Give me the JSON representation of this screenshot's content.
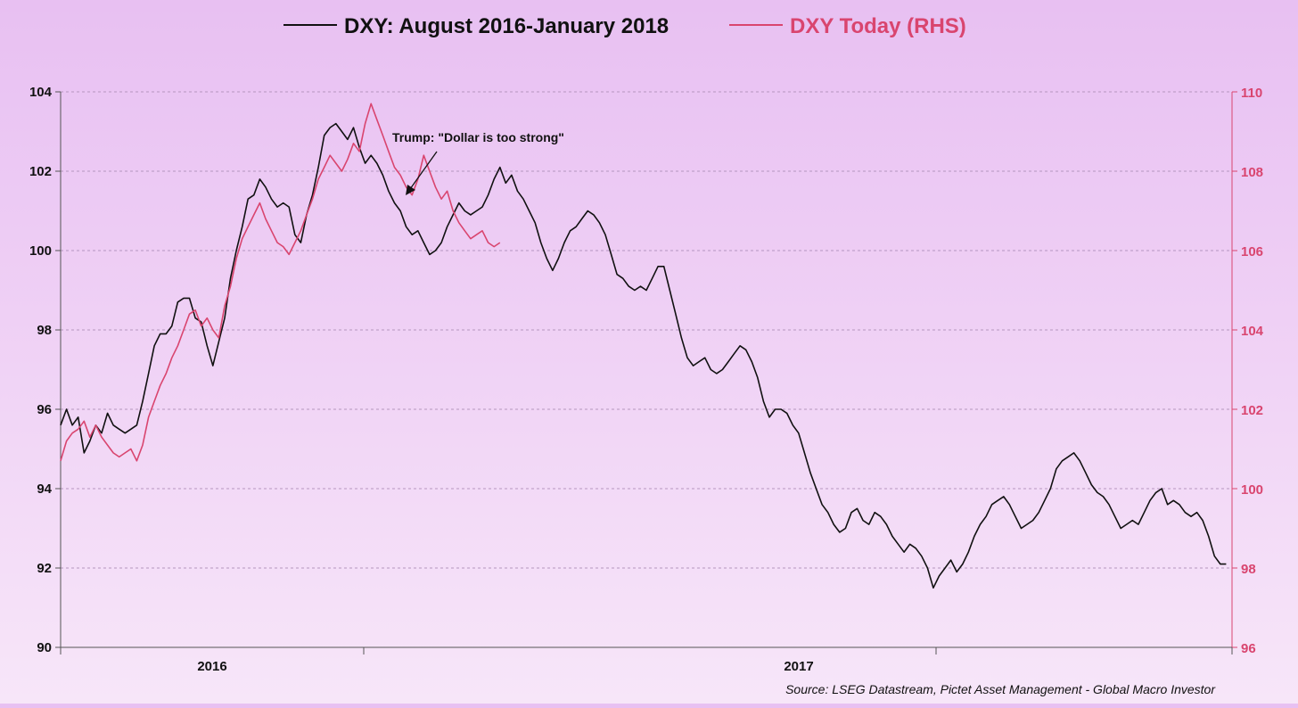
{
  "chart_data": {
    "type": "line",
    "x_axis": {
      "tick_labels": [
        "2016",
        "2017"
      ]
    },
    "y_left": {
      "ylim": [
        90,
        104
      ],
      "ticks": [
        90,
        92,
        94,
        96,
        98,
        100,
        102,
        104
      ]
    },
    "y_right": {
      "ylim": [
        96,
        110
      ],
      "ticks": [
        96,
        98,
        100,
        102,
        104,
        106,
        108,
        110
      ]
    },
    "grid": true,
    "legend_position": "top",
    "annotation": "Trump: \"Dollar is too strong\"",
    "source": "Source: LSEG Datastream, Pictet Asset Management - Global Macro Investor",
    "series": [
      {
        "name": "DXY: August 2016-January 2018",
        "axis": "left",
        "color": "#111111",
        "points": [
          [
            0,
            95.6
          ],
          [
            4,
            96.0
          ],
          [
            8,
            95.6
          ],
          [
            12,
            95.8
          ],
          [
            16,
            94.9
          ],
          [
            20,
            95.2
          ],
          [
            24,
            95.6
          ],
          [
            28,
            95.4
          ],
          [
            32,
            95.9
          ],
          [
            36,
            95.6
          ],
          [
            40,
            95.5
          ],
          [
            44,
            95.4
          ],
          [
            48,
            95.5
          ],
          [
            52,
            95.6
          ],
          [
            56,
            96.2
          ],
          [
            60,
            96.9
          ],
          [
            64,
            97.6
          ],
          [
            68,
            97.9
          ],
          [
            72,
            97.9
          ],
          [
            76,
            98.1
          ],
          [
            80,
            98.7
          ],
          [
            84,
            98.8
          ],
          [
            88,
            98.8
          ],
          [
            92,
            98.3
          ],
          [
            96,
            98.2
          ],
          [
            100,
            97.6
          ],
          [
            104,
            97.1
          ],
          [
            108,
            97.7
          ],
          [
            112,
            98.3
          ],
          [
            116,
            99.3
          ],
          [
            120,
            100.0
          ],
          [
            124,
            100.6
          ],
          [
            128,
            101.3
          ],
          [
            132,
            101.4
          ],
          [
            136,
            101.8
          ],
          [
            140,
            101.6
          ],
          [
            144,
            101.3
          ],
          [
            148,
            101.1
          ],
          [
            152,
            101.2
          ],
          [
            156,
            101.1
          ],
          [
            160,
            100.4
          ],
          [
            164,
            100.2
          ],
          [
            168,
            100.9
          ],
          [
            172,
            101.4
          ],
          [
            176,
            102.1
          ],
          [
            180,
            102.9
          ],
          [
            184,
            103.1
          ],
          [
            188,
            103.2
          ],
          [
            192,
            103.0
          ],
          [
            196,
            102.8
          ],
          [
            200,
            103.1
          ],
          [
            204,
            102.6
          ],
          [
            208,
            102.2
          ],
          [
            212,
            102.4
          ],
          [
            216,
            102.2
          ],
          [
            220,
            101.9
          ],
          [
            224,
            101.5
          ],
          [
            228,
            101.2
          ],
          [
            232,
            101.0
          ],
          [
            236,
            100.6
          ],
          [
            240,
            100.4
          ],
          [
            244,
            100.5
          ],
          [
            248,
            100.2
          ],
          [
            252,
            99.9
          ],
          [
            256,
            100.0
          ],
          [
            260,
            100.2
          ],
          [
            264,
            100.6
          ],
          [
            268,
            100.9
          ],
          [
            272,
            101.2
          ],
          [
            276,
            101.0
          ],
          [
            280,
            100.9
          ],
          [
            284,
            101.0
          ],
          [
            288,
            101.1
          ],
          [
            292,
            101.4
          ],
          [
            296,
            101.8
          ],
          [
            300,
            102.1
          ],
          [
            304,
            101.7
          ],
          [
            308,
            101.9
          ],
          [
            312,
            101.5
          ],
          [
            316,
            101.3
          ],
          [
            320,
            101.0
          ],
          [
            324,
            100.7
          ],
          [
            328,
            100.2
          ],
          [
            332,
            99.8
          ],
          [
            336,
            99.5
          ],
          [
            340,
            99.8
          ],
          [
            344,
            100.2
          ],
          [
            348,
            100.5
          ],
          [
            352,
            100.6
          ],
          [
            356,
            100.8
          ],
          [
            360,
            101.0
          ],
          [
            364,
            100.9
          ],
          [
            368,
            100.7
          ],
          [
            372,
            100.4
          ],
          [
            376,
            99.9
          ],
          [
            380,
            99.4
          ],
          [
            384,
            99.3
          ],
          [
            388,
            99.1
          ],
          [
            392,
            99.0
          ],
          [
            396,
            99.1
          ],
          [
            400,
            99.0
          ],
          [
            404,
            99.3
          ],
          [
            408,
            99.6
          ],
          [
            412,
            99.6
          ],
          [
            416,
            99.0
          ],
          [
            420,
            98.4
          ],
          [
            424,
            97.8
          ],
          [
            428,
            97.3
          ],
          [
            432,
            97.1
          ],
          [
            436,
            97.2
          ],
          [
            440,
            97.3
          ],
          [
            444,
            97.0
          ],
          [
            448,
            96.9
          ],
          [
            452,
            97.0
          ],
          [
            456,
            97.2
          ],
          [
            460,
            97.4
          ],
          [
            464,
            97.6
          ],
          [
            468,
            97.5
          ],
          [
            472,
            97.2
          ],
          [
            476,
            96.8
          ],
          [
            480,
            96.2
          ],
          [
            484,
            95.8
          ],
          [
            488,
            96.0
          ],
          [
            492,
            96.0
          ],
          [
            496,
            95.9
          ],
          [
            500,
            95.6
          ],
          [
            504,
            95.4
          ],
          [
            508,
            94.9
          ],
          [
            512,
            94.4
          ],
          [
            516,
            94.0
          ],
          [
            520,
            93.6
          ],
          [
            524,
            93.4
          ],
          [
            528,
            93.1
          ],
          [
            532,
            92.9
          ],
          [
            536,
            93.0
          ],
          [
            540,
            93.4
          ],
          [
            544,
            93.5
          ],
          [
            548,
            93.2
          ],
          [
            552,
            93.1
          ],
          [
            556,
            93.4
          ],
          [
            560,
            93.3
          ],
          [
            564,
            93.1
          ],
          [
            568,
            92.8
          ],
          [
            572,
            92.6
          ],
          [
            576,
            92.4
          ],
          [
            580,
            92.6
          ],
          [
            584,
            92.5
          ],
          [
            588,
            92.3
          ],
          [
            592,
            92.0
          ],
          [
            596,
            91.5
          ],
          [
            600,
            91.8
          ],
          [
            604,
            92.0
          ],
          [
            608,
            92.2
          ],
          [
            612,
            91.9
          ],
          [
            616,
            92.1
          ],
          [
            620,
            92.4
          ],
          [
            624,
            92.8
          ],
          [
            628,
            93.1
          ],
          [
            632,
            93.3
          ],
          [
            636,
            93.6
          ],
          [
            640,
            93.7
          ],
          [
            644,
            93.8
          ],
          [
            648,
            93.6
          ],
          [
            652,
            93.3
          ],
          [
            656,
            93.0
          ],
          [
            660,
            93.1
          ],
          [
            664,
            93.2
          ],
          [
            668,
            93.4
          ],
          [
            672,
            93.7
          ],
          [
            676,
            94.0
          ],
          [
            680,
            94.5
          ],
          [
            684,
            94.7
          ],
          [
            688,
            94.8
          ],
          [
            692,
            94.9
          ],
          [
            696,
            94.7
          ],
          [
            700,
            94.4
          ],
          [
            704,
            94.1
          ],
          [
            708,
            93.9
          ],
          [
            712,
            93.8
          ],
          [
            716,
            93.6
          ],
          [
            720,
            93.3
          ],
          [
            724,
            93.0
          ],
          [
            728,
            93.1
          ],
          [
            732,
            93.2
          ],
          [
            736,
            93.1
          ],
          [
            740,
            93.4
          ],
          [
            744,
            93.7
          ],
          [
            748,
            93.9
          ],
          [
            752,
            94.0
          ],
          [
            756,
            93.6
          ],
          [
            760,
            93.7
          ],
          [
            764,
            93.6
          ],
          [
            768,
            93.4
          ],
          [
            772,
            93.3
          ],
          [
            776,
            93.4
          ],
          [
            780,
            93.2
          ],
          [
            784,
            92.8
          ],
          [
            788,
            92.3
          ],
          [
            792,
            92.1
          ],
          [
            796,
            92.1
          ]
        ]
      },
      {
        "name": "DXY Today (RHS)",
        "axis": "right",
        "color": "#d9456f",
        "points": [
          [
            0,
            100.7
          ],
          [
            4,
            101.2
          ],
          [
            8,
            101.4
          ],
          [
            12,
            101.5
          ],
          [
            16,
            101.7
          ],
          [
            20,
            101.3
          ],
          [
            24,
            101.6
          ],
          [
            28,
            101.3
          ],
          [
            32,
            101.1
          ],
          [
            36,
            100.9
          ],
          [
            40,
            100.8
          ],
          [
            44,
            100.9
          ],
          [
            48,
            101.0
          ],
          [
            52,
            100.7
          ],
          [
            56,
            101.1
          ],
          [
            60,
            101.8
          ],
          [
            64,
            102.2
          ],
          [
            68,
            102.6
          ],
          [
            72,
            102.9
          ],
          [
            76,
            103.3
          ],
          [
            80,
            103.6
          ],
          [
            84,
            104.0
          ],
          [
            88,
            104.4
          ],
          [
            92,
            104.5
          ],
          [
            96,
            104.1
          ],
          [
            100,
            104.3
          ],
          [
            104,
            104.0
          ],
          [
            108,
            103.8
          ],
          [
            112,
            104.6
          ],
          [
            116,
            105.1
          ],
          [
            120,
            105.8
          ],
          [
            124,
            106.3
          ],
          [
            128,
            106.6
          ],
          [
            132,
            106.9
          ],
          [
            136,
            107.2
          ],
          [
            140,
            106.8
          ],
          [
            144,
            106.5
          ],
          [
            148,
            106.2
          ],
          [
            152,
            106.1
          ],
          [
            156,
            105.9
          ],
          [
            160,
            106.2
          ],
          [
            164,
            106.5
          ],
          [
            168,
            106.9
          ],
          [
            172,
            107.3
          ],
          [
            176,
            107.8
          ],
          [
            180,
            108.1
          ],
          [
            184,
            108.4
          ],
          [
            188,
            108.2
          ],
          [
            192,
            108.0
          ],
          [
            196,
            108.3
          ],
          [
            200,
            108.7
          ],
          [
            204,
            108.5
          ],
          [
            208,
            109.2
          ],
          [
            212,
            109.7
          ],
          [
            216,
            109.3
          ],
          [
            220,
            108.9
          ],
          [
            224,
            108.5
          ],
          [
            228,
            108.1
          ],
          [
            232,
            107.9
          ],
          [
            236,
            107.6
          ],
          [
            240,
            107.4
          ],
          [
            244,
            107.8
          ],
          [
            248,
            108.4
          ],
          [
            252,
            108.0
          ],
          [
            256,
            107.6
          ],
          [
            260,
            107.3
          ],
          [
            264,
            107.5
          ],
          [
            268,
            107.0
          ],
          [
            272,
            106.7
          ],
          [
            276,
            106.5
          ],
          [
            280,
            106.3
          ],
          [
            284,
            106.4
          ],
          [
            288,
            106.5
          ],
          [
            292,
            106.2
          ],
          [
            296,
            106.1
          ],
          [
            300,
            106.2
          ]
        ]
      }
    ]
  }
}
